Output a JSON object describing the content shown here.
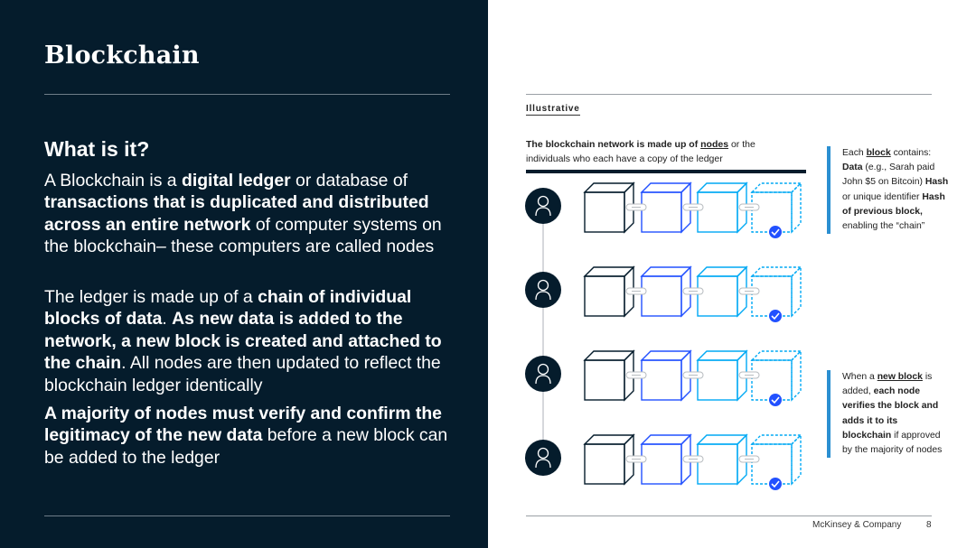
{
  "left_panel": {
    "title": "Blockchain",
    "subheading": "What is it?",
    "paragraphs": [
      [
        {
          "t": "A Blockchain is a ",
          "b": false
        },
        {
          "t": "digital ledger",
          "b": true
        },
        {
          "t": " or database of ",
          "b": false
        },
        {
          "t": "transactions that is duplicated and distributed across an entire network",
          "b": true
        },
        {
          "t": " of computer systems on the blockchain– these computers are called nodes",
          "b": false
        }
      ],
      [
        {
          "t": "The ledger is made up of a ",
          "b": false
        },
        {
          "t": "chain of individual blocks of data",
          "b": true
        },
        {
          "t": ". ",
          "b": false
        },
        {
          "t": "As new data is added to the network, a new block is created and attached to the chain",
          "b": true
        },
        {
          "t": ". All nodes are then updated to reflect the blockchain ledger identically",
          "b": false
        }
      ],
      [
        {
          "t": "A majority of nodes must verify and confirm the legitimacy of the new data",
          "b": true
        },
        {
          "t": " before a new block can be added to the ledger",
          "b": false
        }
      ]
    ]
  },
  "right_panel": {
    "tag": "Illustrative",
    "caption": [
      {
        "t": "The blockchain network is made up of ",
        "b": true
      },
      {
        "t": "nodes",
        "b": true,
        "u": true
      },
      {
        "t": " or the individuals who each have a copy of the ledger",
        "b": false
      }
    ],
    "notes": [
      [
        {
          "t": "Each ",
          "b": false
        },
        {
          "t": "block",
          "b": true,
          "u": true
        },
        {
          "t": " contains: ",
          "b": false
        },
        {
          "t": "Data",
          "b": true
        },
        {
          "t": " (e.g., Sarah paid John $5 on Bitcoin) ",
          "b": false
        },
        {
          "t": "Hash",
          "b": true
        },
        {
          "t": " or unique identifier ",
          "b": false
        },
        {
          "t": "Hash of previous block,",
          "b": true
        },
        {
          "t": " enabling the “chain”",
          "b": false
        }
      ],
      [
        {
          "t": "When a ",
          "b": false
        },
        {
          "t": "new block",
          "b": true,
          "u": true
        },
        {
          "t": " is added, ",
          "b": false
        },
        {
          "t": "each node verifies the block and adds it to its blockchain",
          "b": true
        },
        {
          "t": " if approved by the majority of nodes",
          "b": false
        }
      ]
    ],
    "diagram": {
      "node_count": 4,
      "block_colors": [
        "#051c2c",
        "#2251ff",
        "#00a9f4",
        "#00a9f4"
      ],
      "new_block_style": "dashed",
      "check_color": "#2251ff"
    }
  },
  "footer": {
    "brand": "McKinsey & Company",
    "page": "8"
  }
}
